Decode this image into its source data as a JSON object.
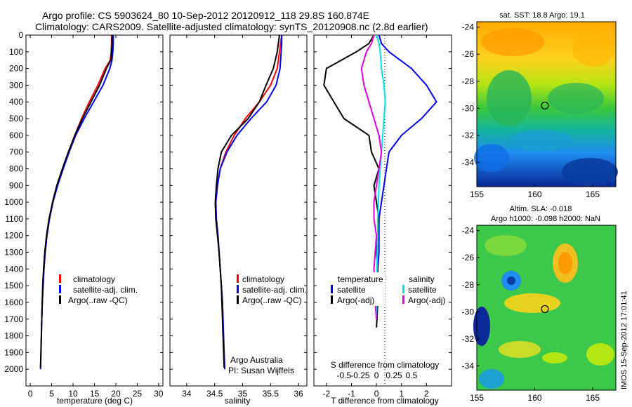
{
  "header": {
    "line1": "Argo profile: CS 5903624_80 10-Sep-2012 20120912_118 29.8S 160.874E",
    "line2": "Climatology: CARS2009. Satellite-adjusted climatology: synTS_20120908.nc (2.8d earlier)"
  },
  "side_label": "IMOS 15-Sep-2012 17:01:41",
  "colors": {
    "climatology": "#ff0000",
    "satellite": "#0000ff",
    "argo": "#000000",
    "salinity_satellite": "#00e5e5",
    "salinity_argo": "#e000e0"
  },
  "chart_data": [
    {
      "type": "line",
      "id": "temperature",
      "xlabel": "temperature (deg C)",
      "xlim": [
        -1,
        31
      ],
      "xticks": [
        0,
        5,
        10,
        15,
        20,
        25,
        30
      ],
      "ylim": [
        2100,
        0
      ],
      "yticks": [
        0,
        100,
        200,
        300,
        400,
        500,
        600,
        700,
        800,
        900,
        1000,
        1100,
        1200,
        1300,
        1400,
        1500,
        1600,
        1700,
        1800,
        1900,
        2000
      ],
      "legend": [
        "climatology",
        "satellite-adj. clim.",
        "Argo(..raw -QC)"
      ],
      "series": [
        {
          "name": "climatology",
          "color_key": "climatology",
          "points": [
            [
              19.0,
              0
            ],
            [
              19.0,
              50
            ],
            [
              18.9,
              100
            ],
            [
              18.7,
              150
            ],
            [
              17.5,
              200
            ],
            [
              15.8,
              300
            ],
            [
              13.8,
              400
            ],
            [
              12.0,
              500
            ],
            [
              10.4,
              600
            ],
            [
              9.0,
              700
            ],
            [
              7.6,
              800
            ],
            [
              6.3,
              900
            ],
            [
              5.3,
              1000
            ],
            [
              4.4,
              1100
            ],
            [
              3.8,
              1200
            ],
            [
              3.4,
              1300
            ],
            [
              3.2,
              1400
            ],
            [
              3.0,
              1500
            ],
            [
              2.8,
              1600
            ],
            [
              2.7,
              1700
            ]
          ]
        },
        {
          "name": "satellite-adj. clim.",
          "color_key": "satellite",
          "points": [
            [
              19.4,
              0
            ],
            [
              19.4,
              50
            ],
            [
              19.3,
              100
            ],
            [
              19.1,
              150
            ],
            [
              18.6,
              200
            ],
            [
              17.0,
              300
            ],
            [
              14.8,
              400
            ],
            [
              12.6,
              500
            ],
            [
              10.6,
              600
            ],
            [
              9.1,
              700
            ],
            [
              7.7,
              800
            ],
            [
              6.4,
              900
            ],
            [
              5.3,
              1000
            ],
            [
              4.5,
              1100
            ],
            [
              3.9,
              1200
            ],
            [
              3.5,
              1300
            ],
            [
              3.2,
              1400
            ],
            [
              3.0,
              1500
            ],
            [
              2.8,
              1600
            ],
            [
              2.7,
              1700
            ],
            [
              2.6,
              1800
            ],
            [
              2.5,
              1900
            ],
            [
              2.4,
              2000
            ]
          ]
        },
        {
          "name": "Argo(..raw -QC)",
          "color_key": "argo",
          "points": [
            [
              19.1,
              0
            ],
            [
              19.1,
              50
            ],
            [
              19.0,
              100
            ],
            [
              18.8,
              150
            ],
            [
              17.8,
              200
            ],
            [
              16.2,
              300
            ],
            [
              14.2,
              400
            ],
            [
              12.2,
              500
            ],
            [
              10.4,
              600
            ],
            [
              8.9,
              700
            ],
            [
              7.5,
              800
            ],
            [
              6.2,
              900
            ],
            [
              5.2,
              1000
            ],
            [
              4.4,
              1100
            ],
            [
              3.8,
              1200
            ],
            [
              3.4,
              1300
            ],
            [
              3.1,
              1400
            ],
            [
              2.9,
              1500
            ],
            [
              2.8,
              1600
            ],
            [
              2.7,
              1700
            ],
            [
              2.6,
              1800
            ],
            [
              2.5,
              1900
            ],
            [
              2.4,
              1990
            ]
          ]
        }
      ]
    },
    {
      "type": "line",
      "id": "salinity",
      "xlabel": "salinity",
      "xlim": [
        33.7,
        36.15
      ],
      "xticks": [
        34,
        34.5,
        35,
        35.5,
        36
      ],
      "ylim": [
        2100,
        0
      ],
      "legend": [
        "climatology",
        "satellite-adj. clim.",
        "Argo(..raw -QC)"
      ],
      "annotations": [
        "Argo Australia",
        "PI: Susan Wijffels"
      ],
      "series": [
        {
          "name": "climatology",
          "color_key": "climatology",
          "points": [
            [
              35.7,
              0
            ],
            [
              35.68,
              50
            ],
            [
              35.66,
              100
            ],
            [
              35.62,
              200
            ],
            [
              35.5,
              300
            ],
            [
              35.3,
              400
            ],
            [
              35.05,
              500
            ],
            [
              34.85,
              600
            ],
            [
              34.7,
              700
            ],
            [
              34.6,
              800
            ],
            [
              34.55,
              900
            ],
            [
              34.52,
              1000
            ],
            [
              34.53,
              1100
            ],
            [
              34.56,
              1200
            ],
            [
              34.58,
              1300
            ],
            [
              34.6,
              1400
            ],
            [
              34.62,
              1500
            ],
            [
              34.64,
              1600
            ],
            [
              34.65,
              1700
            ]
          ]
        },
        {
          "name": "satellite-adj. clim.",
          "color_key": "satellite",
          "points": [
            [
              35.7,
              0
            ],
            [
              35.7,
              50
            ],
            [
              35.69,
              100
            ],
            [
              35.67,
              200
            ],
            [
              35.6,
              300
            ],
            [
              35.43,
              400
            ],
            [
              35.15,
              500
            ],
            [
              34.9,
              600
            ],
            [
              34.72,
              700
            ],
            [
              34.6,
              800
            ],
            [
              34.55,
              900
            ],
            [
              34.52,
              1000
            ],
            [
              34.53,
              1100
            ],
            [
              34.56,
              1200
            ],
            [
              34.58,
              1300
            ],
            [
              34.6,
              1400
            ],
            [
              34.62,
              1500
            ],
            [
              34.64,
              1600
            ],
            [
              34.65,
              1700
            ],
            [
              34.66,
              1800
            ],
            [
              34.67,
              1900
            ],
            [
              34.68,
              2000
            ]
          ]
        },
        {
          "name": "Argo(..raw -QC)",
          "color_key": "argo",
          "points": [
            [
              35.66,
              0
            ],
            [
              35.64,
              50
            ],
            [
              35.62,
              100
            ],
            [
              35.55,
              200
            ],
            [
              35.42,
              300
            ],
            [
              35.3,
              400
            ],
            [
              35.1,
              500
            ],
            [
              34.8,
              600
            ],
            [
              34.62,
              700
            ],
            [
              34.56,
              800
            ],
            [
              34.53,
              900
            ],
            [
              34.51,
              1000
            ],
            [
              34.52,
              1100
            ],
            [
              34.55,
              1200
            ],
            [
              34.58,
              1300
            ],
            [
              34.6,
              1400
            ],
            [
              34.62,
              1500
            ],
            [
              34.63,
              1600
            ],
            [
              34.64,
              1700
            ],
            [
              34.65,
              1800
            ],
            [
              34.66,
              1900
            ],
            [
              34.67,
              1990
            ]
          ]
        }
      ]
    },
    {
      "type": "line",
      "id": "difference",
      "xlabel": "T difference from climatology",
      "xlabel_top": "S difference from climatology",
      "xlim": [
        -2.5,
        3.0
      ],
      "xticks": [
        -2,
        -1,
        0,
        1,
        2
      ],
      "s_xtick_labels": [
        "-0.5",
        "-0.25",
        "0",
        "0.25",
        "0.5"
      ],
      "ylim": [
        2100,
        0
      ],
      "legend_left_title": "temperature",
      "legend_right_title": "salinity",
      "legend_left": [
        "satellite",
        "Argo(-adj)"
      ],
      "legend_right": [
        "satellite",
        "Argo(-adj)"
      ],
      "series": [
        {
          "name": "satellite",
          "color_key": "satellite",
          "points": [
            [
              0.1,
              0
            ],
            [
              0.2,
              50
            ],
            [
              0.5,
              100
            ],
            [
              1.4,
              200
            ],
            [
              2.0,
              300
            ],
            [
              2.4,
              400
            ],
            [
              1.8,
              500
            ],
            [
              1.0,
              600
            ],
            [
              0.5,
              700
            ],
            [
              0.4,
              800
            ],
            [
              0.3,
              900
            ],
            [
              0.2,
              1000
            ],
            [
              0.1,
              1100
            ],
            [
              0.1,
              1200
            ],
            [
              0.1,
              1300
            ],
            [
              0.05,
              1400
            ],
            [
              0.05,
              1500
            ],
            [
              0.03,
              1600
            ],
            [
              0.02,
              1700
            ]
          ]
        },
        {
          "name": "Argo(-adj)",
          "color_key": "argo",
          "points": [
            [
              -0.1,
              0
            ],
            [
              -0.3,
              50
            ],
            [
              -0.8,
              100
            ],
            [
              -2.0,
              200
            ],
            [
              -2.1,
              300
            ],
            [
              -1.7,
              400
            ],
            [
              -1.3,
              500
            ],
            [
              -0.3,
              600
            ],
            [
              -0.2,
              700
            ],
            [
              0.1,
              800
            ],
            [
              -0.1,
              900
            ],
            [
              0.0,
              1000
            ],
            [
              0.1,
              1100
            ],
            [
              0.05,
              1200
            ],
            [
              0.0,
              1300
            ],
            [
              0.05,
              1400
            ],
            [
              0.0,
              1500
            ],
            [
              0.05,
              1600
            ],
            [
              0.02,
              1700
            ],
            [
              0.0,
              1750
            ]
          ]
        },
        {
          "name": "salinity satellite",
          "color_key": "salinity_satellite",
          "points": [
            [
              0.0,
              0
            ],
            [
              0.1,
              50
            ],
            [
              0.15,
              100
            ],
            [
              0.2,
              200
            ],
            [
              0.3,
              300
            ],
            [
              0.35,
              400
            ],
            [
              0.3,
              500
            ],
            [
              0.25,
              600
            ],
            [
              0.2,
              700
            ],
            [
              0.15,
              800
            ],
            [
              0.1,
              900
            ],
            [
              0.08,
              1000
            ],
            [
              0.05,
              1100
            ],
            [
              0.05,
              1200
            ],
            [
              0.03,
              1300
            ],
            [
              0.02,
              1400
            ],
            [
              0.02,
              1500
            ],
            [
              0.01,
              1600
            ],
            [
              0.0,
              1700
            ]
          ]
        },
        {
          "name": "salinity Argo(-adj)",
          "color_key": "salinity_argo",
          "points": [
            [
              -0.1,
              0
            ],
            [
              -0.2,
              50
            ],
            [
              -0.4,
              100
            ],
            [
              -0.6,
              200
            ],
            [
              -0.5,
              300
            ],
            [
              -0.3,
              400
            ],
            [
              -0.1,
              500
            ],
            [
              0.1,
              600
            ],
            [
              0.2,
              700
            ],
            [
              0.1,
              800
            ],
            [
              0.0,
              900
            ],
            [
              -0.1,
              1000
            ],
            [
              -0.1,
              1100
            ],
            [
              0.0,
              1200
            ],
            [
              -0.05,
              1300
            ],
            [
              -0.1,
              1400
            ],
            [
              -0.05,
              1500
            ],
            [
              -0.05,
              1600
            ],
            [
              0.0,
              1700
            ]
          ]
        }
      ]
    },
    {
      "type": "heatmap",
      "id": "sst-map",
      "title": "sat. SST: 18.8  Argo: 19.1",
      "xlim": [
        155,
        167
      ],
      "ylim": [
        -35.8,
        -23.6
      ],
      "xticks": [
        155,
        160,
        165
      ],
      "yticks": [
        -24,
        -26,
        -28,
        -30,
        -32,
        -34
      ],
      "marker": [
        160.874,
        -29.8
      ]
    },
    {
      "type": "heatmap",
      "id": "sla-map",
      "title_line1": "Altim. SLA: -0.018",
      "title_line2": "Argo h1000: -0.098  h2000: NaN",
      "xlim": [
        155,
        167
      ],
      "ylim": [
        -35.8,
        -23.6
      ],
      "xticks": [
        155,
        160,
        165
      ],
      "yticks": [
        -24,
        -26,
        -28,
        -30,
        -32,
        -34
      ],
      "marker": [
        160.874,
        -29.8
      ]
    }
  ]
}
